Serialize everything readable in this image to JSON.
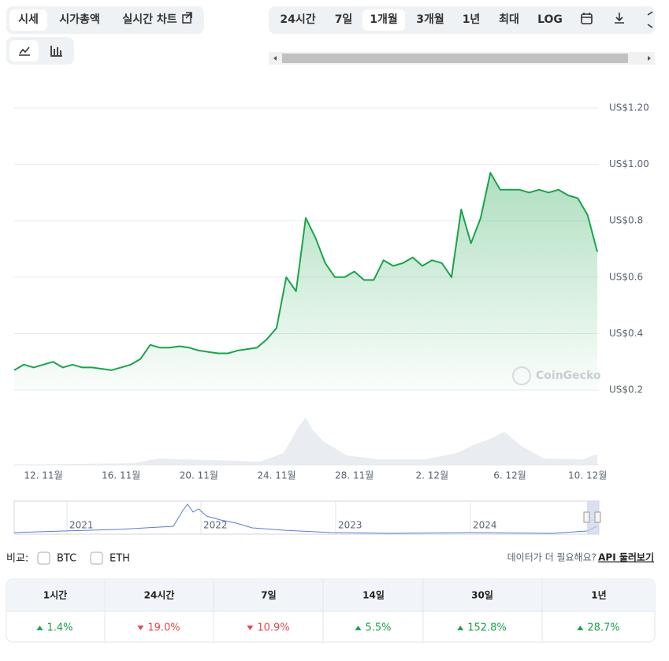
{
  "tabs": [
    "시세",
    "시가총액",
    "실시간 차트"
  ],
  "ranges": [
    "24시간",
    "7일",
    "1개월",
    "3개월",
    "1년",
    "최대",
    "LOG"
  ],
  "chart_data": {
    "type": "line",
    "color": "#1aa34a",
    "categories": [
      null,
      null,
      null,
      "12. 11월",
      null,
      null,
      null,
      null,
      null,
      null,
      null,
      "16. 11월",
      null,
      null,
      null,
      null,
      null,
      null,
      null,
      "20. 11월",
      null,
      null,
      null,
      null,
      null,
      null,
      null,
      "24. 11월",
      null,
      null,
      null,
      null,
      null,
      null,
      null,
      "28. 11월",
      null,
      null,
      null,
      null,
      null,
      null,
      null,
      "2. 12월",
      null,
      null,
      null,
      null,
      null,
      null,
      null,
      "6. 12월",
      null,
      null,
      null,
      null,
      null,
      null,
      null,
      "10. 12월",
      null
    ],
    "values": [
      0.27,
      0.29,
      0.28,
      0.29,
      0.3,
      0.28,
      0.29,
      0.28,
      0.28,
      0.275,
      0.27,
      0.28,
      0.29,
      0.31,
      0.36,
      0.35,
      0.35,
      0.355,
      0.35,
      0.34,
      0.335,
      0.33,
      0.33,
      0.34,
      0.345,
      0.35,
      0.38,
      0.42,
      0.6,
      0.55,
      0.81,
      0.74,
      0.65,
      0.6,
      0.6,
      0.62,
      0.59,
      0.59,
      0.66,
      0.64,
      0.65,
      0.67,
      0.64,
      0.66,
      0.65,
      0.6,
      0.84,
      0.72,
      0.81,
      0.97,
      0.91,
      0.91,
      0.91,
      0.9,
      0.91,
      0.9,
      0.91,
      0.89,
      0.88,
      0.82,
      0.69
    ],
    "ylim": [
      0.2,
      1.3
    ],
    "yticks": [
      {
        "value": 0.2,
        "label": "US$0.2"
      },
      {
        "value": 0.4,
        "label": "US$0.4"
      },
      {
        "value": 0.6,
        "label": "US$0.6"
      },
      {
        "value": 0.8,
        "label": "US$0.8"
      },
      {
        "value": 1.0,
        "label": "US$1.00"
      },
      {
        "value": 1.2,
        "label": "US$1.20"
      }
    ],
    "grid": true,
    "watermark": "CoinGecko",
    "overview_labels": [
      "2021",
      "2022",
      "2023",
      "2024"
    ]
  },
  "compare": {
    "label": "비교:",
    "options": [
      "BTC",
      "ETH"
    ]
  },
  "api": {
    "question": "데이터가 더 필요해요?",
    "link": "API 둘러보기"
  },
  "table": {
    "headers": [
      "1시간",
      "24시간",
      "7일",
      "14일",
      "30일",
      "1년"
    ],
    "rows": [
      [
        {
          "text": "1.4%",
          "trend": "up"
        },
        {
          "text": "19.0%",
          "trend": "down"
        },
        {
          "text": "10.9%",
          "trend": "down"
        },
        {
          "text": "5.5%",
          "trend": "up"
        },
        {
          "text": "152.8%",
          "trend": "up"
        },
        {
          "text": "28.7%",
          "trend": "up"
        }
      ]
    ]
  }
}
